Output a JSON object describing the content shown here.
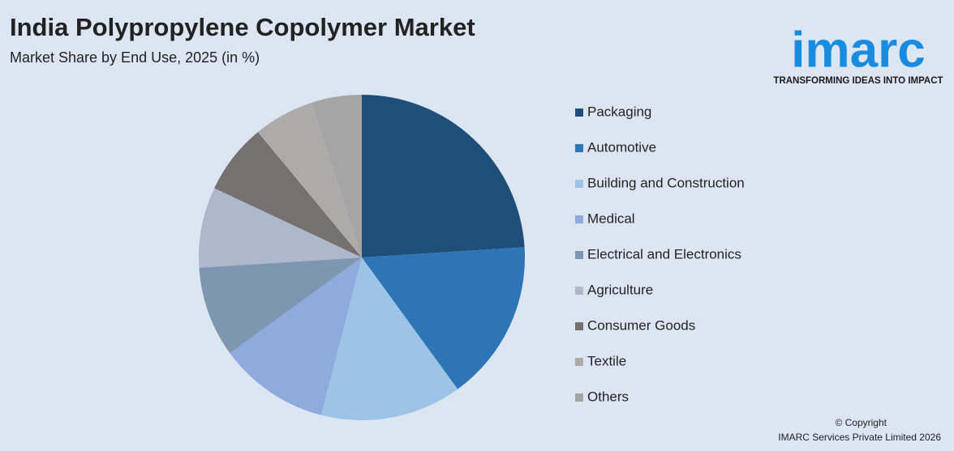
{
  "chart_data": {
    "type": "pie",
    "title": "India Polypropylene Copolymer Market",
    "subtitle": "Market Share by End Use, 2025 (in %)",
    "categories": [
      "Packaging",
      "Automotive",
      "Building and Construction",
      "Medical",
      "Electrical and Electronics",
      "Agriculture",
      "Consumer Goods",
      "Textile",
      "Others"
    ],
    "values": [
      24,
      16,
      14,
      11,
      9,
      8,
      7,
      6,
      5
    ],
    "colors": [
      "#1f4e79",
      "#2e75b6",
      "#9dc3e6",
      "#8faadc",
      "#7f96b0",
      "#adb9ca",
      "#767171",
      "#aeaaaa",
      "#a5a5a5"
    ]
  },
  "logo": {
    "name": "imarc",
    "tagline": "TRANSFORMING IDEAS INTO IMPACT"
  },
  "footer": {
    "copyright": "© Copyright",
    "company": "IMARC Services Private Limited 2026"
  }
}
